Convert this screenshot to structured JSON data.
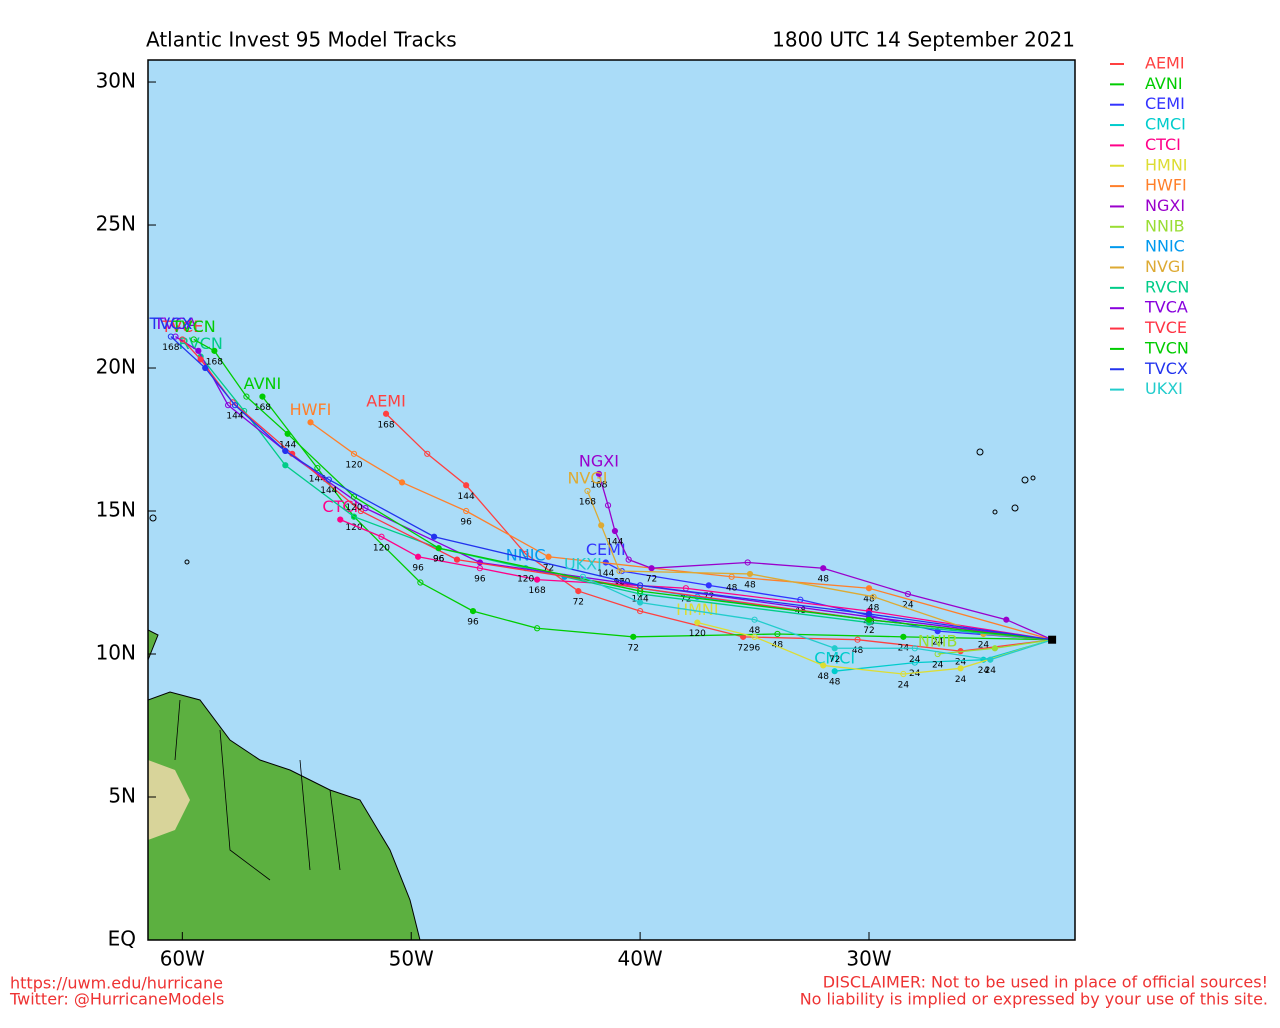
{
  "chart_data": {
    "type": "track-map",
    "title": "Atlantic Invest 95 Model Tracks",
    "subtitle": "1800 UTC 14 September 2021",
    "xlim": [
      -61.5,
      -21
    ],
    "ylim": [
      0,
      30.77
    ],
    "xticks": [
      {
        "value": -60,
        "label": "60W"
      },
      {
        "value": -50,
        "label": "50W"
      },
      {
        "value": -40,
        "label": "40W"
      },
      {
        "value": -30,
        "label": "30W"
      }
    ],
    "yticks": [
      {
        "value": 0,
        "label": "EQ"
      },
      {
        "value": 5,
        "label": "5N"
      },
      {
        "value": 10,
        "label": "10N"
      },
      {
        "value": 15,
        "label": "15N"
      },
      {
        "value": 20,
        "label": "20N"
      },
      {
        "value": 25,
        "label": "25N"
      },
      {
        "value": 30,
        "label": "30N"
      }
    ],
    "series": [
      {
        "name": "AEMI",
        "color": "#ff4040",
        "lon": [
          -22,
          -26,
          -30.5,
          -35.5,
          -40,
          -42.7,
          -45,
          -47.6,
          -49.3,
          -51.1
        ],
        "lat": [
          10.5,
          10.1,
          10.5,
          10.6,
          11.5,
          12.2,
          13.5,
          15.9,
          17,
          18.4
        ],
        "hour_labels": [
          null,
          "24",
          "48",
          "72",
          null,
          "72",
          null,
          "144",
          null,
          "168"
        ]
      },
      {
        "name": "AVNI",
        "color": "#00cc00",
        "lon": [
          -22,
          -28.5,
          -34,
          -40.3,
          -44.5,
          -47.3,
          -49.6,
          -52.5,
          -54.1,
          -56.5
        ],
        "lat": [
          10.5,
          10.6,
          10.7,
          10.6,
          10.9,
          11.5,
          12.5,
          14.8,
          16.5,
          19
        ],
        "hour_labels": [
          null,
          "24",
          "48",
          "72",
          null,
          "96",
          null,
          "120",
          "144",
          "168"
        ]
      },
      {
        "name": "CEMI",
        "color": "#3333ff",
        "lon": [
          -22,
          -27,
          -33,
          -37,
          -40.8,
          -41.5
        ],
        "lat": [
          10.5,
          10.8,
          11.9,
          12.4,
          12.9,
          13.2
        ],
        "hour_labels": [
          null,
          "24",
          "48",
          "72",
          "120",
          "144"
        ]
      },
      {
        "name": "CMCI",
        "color": "#00cccc",
        "lon": [
          -22,
          -25,
          -28,
          -31.5
        ],
        "lat": [
          10.5,
          9.8,
          9.7,
          9.4
        ],
        "hour_labels": [
          null,
          "24",
          "24",
          "48"
        ]
      },
      {
        "name": "CTCI",
        "color": "#ff0088",
        "lon": [
          -22,
          -30,
          -38,
          -44.5,
          -47,
          -49.7,
          -51.3,
          -53.1
        ],
        "lat": [
          10.5,
          11.5,
          12.3,
          12.6,
          13,
          13.4,
          14.1,
          14.7
        ],
        "hour_labels": [
          null,
          "48",
          "72",
          "168",
          "96",
          "96",
          "120",
          null
        ]
      },
      {
        "name": "HMNI",
        "color": "#dddd33",
        "lon": [
          -22,
          -26,
          -28.5,
          -32,
          -35,
          -37.5
        ],
        "lat": [
          10.5,
          9.5,
          9.3,
          9.6,
          10.6,
          11.1
        ],
        "hour_labels": [
          null,
          "24",
          "24",
          "48",
          "96",
          "120"
        ]
      },
      {
        "name": "HWFI",
        "color": "#ff7f2a",
        "lon": [
          -22,
          -30,
          -36,
          -44,
          -47.6,
          -50.4,
          -52.5,
          -54.4
        ],
        "lat": [
          10.5,
          12.3,
          12.7,
          13.4,
          15,
          16,
          17,
          18.1
        ],
        "hour_labels": [
          null,
          "48",
          "48",
          "72",
          "96",
          null,
          "120",
          null
        ]
      },
      {
        "name": "NGXI",
        "color": "#9900cc",
        "lon": [
          -22,
          -24,
          -28.3,
          -32,
          -35.3,
          -39.5,
          -40.5,
          -41.1,
          -41.4,
          -41.8
        ],
        "lat": [
          10.5,
          11.2,
          12.1,
          13,
          13.2,
          13,
          13.3,
          14.3,
          15.2,
          16.3
        ],
        "hour_labels": [
          null,
          null,
          "24",
          "48",
          null,
          "72",
          null,
          "144",
          null,
          "168"
        ]
      },
      {
        "name": "NNIB",
        "color": "#99dd33",
        "lon": [
          -22,
          -24.5,
          -27
        ],
        "lat": [
          10.5,
          10.2,
          10
        ],
        "hour_labels": [
          null,
          null,
          "24"
        ]
      },
      {
        "name": "NNIC",
        "color": "#0099ee",
        "lon": [
          -22,
          -30,
          -37.5,
          -43.3,
          -45
        ],
        "lat": [
          10.5,
          11.2,
          12,
          12.7,
          13
        ],
        "hour_labels": [
          null,
          "72",
          null,
          null,
          "120"
        ]
      },
      {
        "name": "NVGI",
        "color": "#ddaa33",
        "lon": [
          -22,
          -25,
          -29.8,
          -35.2,
          -40.9,
          -41.7,
          -42.3
        ],
        "lat": [
          10.5,
          10.7,
          12,
          12.8,
          12.9,
          14.5,
          15.7
        ],
        "hour_labels": [
          null,
          "24",
          "48",
          "48",
          "96",
          null,
          "168"
        ]
      },
      {
        "name": "RVCN",
        "color": "#00cc88",
        "lon": [
          -22,
          -30,
          -40,
          -48.8,
          -52.5,
          -55.5,
          -57.3,
          -59.2
        ],
        "lat": [
          10.5,
          11.1,
          12.1,
          13.7,
          14.8,
          16.6,
          18.5,
          20.4
        ],
        "hour_labels": [
          null,
          null,
          null,
          "96",
          null,
          null,
          null,
          null
        ]
      },
      {
        "name": "TVCA",
        "color": "#8800dd",
        "lon": [
          -22,
          -30,
          -40,
          -47,
          -52,
          -55.5,
          -58,
          -59.3,
          -60.3
        ],
        "lat": [
          10.5,
          11.3,
          12.4,
          13.2,
          15.1,
          17.1,
          18.7,
          20.6,
          21.1
        ],
        "hour_labels": [
          null,
          null,
          null,
          null,
          null,
          null,
          null,
          null,
          null
        ]
      },
      {
        "name": "TVCE",
        "color": "#ff3344",
        "lon": [
          -22,
          -30,
          -40,
          -48,
          -52.2,
          -55.2,
          -57.8,
          -59.2,
          -60
        ],
        "lat": [
          10.5,
          11.2,
          12.3,
          13.3,
          15,
          17,
          18.8,
          20.3,
          21
        ],
        "hour_labels": [
          null,
          null,
          "144",
          null,
          null,
          null,
          null,
          null,
          null
        ]
      },
      {
        "name": "TVCN",
        "color": "#00cc00",
        "lon": [
          -22,
          -30,
          -40,
          -48.8,
          -52.5,
          -55.4,
          -57.2,
          -58.6,
          -59.5
        ],
        "lat": [
          10.5,
          11.2,
          12.2,
          13.7,
          15.5,
          17.7,
          19,
          20.6,
          21
        ],
        "hour_labels": [
          null,
          null,
          null,
          "96",
          "120",
          "144",
          null,
          "168",
          null
        ]
      },
      {
        "name": "TVCX",
        "color": "#2233ee",
        "lon": [
          -22,
          -30,
          -40,
          -49,
          -53.6,
          -55.5,
          -57.7,
          -59,
          -60.5
        ],
        "lat": [
          10.5,
          11.4,
          12.4,
          14.1,
          16.1,
          17.1,
          18.7,
          20,
          21.1
        ],
        "hour_labels": [
          null,
          null,
          null,
          null,
          "144",
          null,
          "144",
          null,
          "168"
        ]
      },
      {
        "name": "UKXI",
        "color": "#22cccc",
        "lon": [
          -22,
          -24.7,
          -28,
          -31.5,
          -35,
          -40,
          -42.5
        ],
        "lat": [
          10.5,
          9.8,
          10.2,
          10.2,
          11.2,
          11.8,
          12.7
        ],
        "hour_labels": [
          null,
          "24",
          "24",
          "72",
          "48",
          null,
          null
        ]
      }
    ],
    "footer_left": [
      "https://uwm.edu/hurricane",
      "Twitter: @HurricaneModels"
    ],
    "footer_right": [
      "DISCLAIMER: Not to be used in place of official sources!",
      "No liability is implied or expressed by your use of this site."
    ]
  }
}
